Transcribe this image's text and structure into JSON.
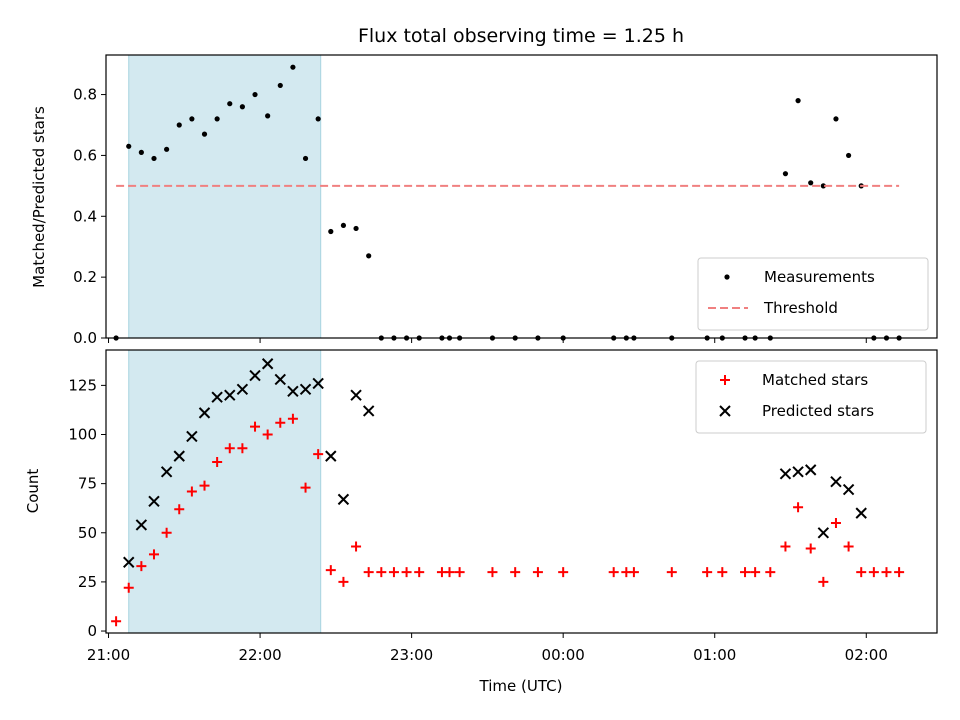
{
  "chart_data": [
    {
      "type": "scatter",
      "title": "Flux total observing time = 1.25 h",
      "xlabel": "",
      "ylabel": "Matched/Predicted stars",
      "ylim": [
        0,
        0.93
      ],
      "yticks": [
        0.0,
        0.2,
        0.4,
        0.6,
        0.8
      ],
      "ytick_labels": [
        "0.0",
        "0.2",
        "0.4",
        "0.6",
        "0.8"
      ],
      "xlim": [
        "20:59",
        "02:28"
      ],
      "shaded_interval": [
        "21:08",
        "22:24"
      ],
      "shade_color": "#d3e9f0",
      "legend_position": "lower-right",
      "series": [
        {
          "name": "Measurements",
          "marker": "dot",
          "color": "#000000",
          "points": [
            [
              "21:03",
              0.0
            ],
            [
              "21:08",
              0.63
            ],
            [
              "21:13",
              0.61
            ],
            [
              "21:18",
              0.59
            ],
            [
              "21:23",
              0.62
            ],
            [
              "21:28",
              0.7
            ],
            [
              "21:33",
              0.72
            ],
            [
              "21:38",
              0.67
            ],
            [
              "21:43",
              0.72
            ],
            [
              "21:48",
              0.77
            ],
            [
              "21:53",
              0.76
            ],
            [
              "21:58",
              0.8
            ],
            [
              "22:03",
              0.73
            ],
            [
              "22:08",
              0.83
            ],
            [
              "22:13",
              0.89
            ],
            [
              "22:18",
              0.59
            ],
            [
              "22:23",
              0.72
            ],
            [
              "22:28",
              0.35
            ],
            [
              "22:33",
              0.37
            ],
            [
              "22:38",
              0.36
            ],
            [
              "22:43",
              0.27
            ],
            [
              "22:48",
              0.0
            ],
            [
              "22:53",
              0.0
            ],
            [
              "22:58",
              0.0
            ],
            [
              "23:03",
              0.0
            ],
            [
              "23:12",
              0.0
            ],
            [
              "23:15",
              0.0
            ],
            [
              "23:19",
              0.0
            ],
            [
              "23:32",
              0.0
            ],
            [
              "23:41",
              0.0
            ],
            [
              "23:50",
              0.0
            ],
            [
              "00:00",
              0.0
            ],
            [
              "00:20",
              0.0
            ],
            [
              "00:25",
              0.0
            ],
            [
              "00:28",
              0.0
            ],
            [
              "00:43",
              0.0
            ],
            [
              "00:57",
              0.0
            ],
            [
              "01:03",
              0.0
            ],
            [
              "01:12",
              0.0
            ],
            [
              "01:16",
              0.0
            ],
            [
              "01:22",
              0.0
            ],
            [
              "01:28",
              0.54
            ],
            [
              "01:33",
              0.78
            ],
            [
              "01:38",
              0.51
            ],
            [
              "01:43",
              0.5
            ],
            [
              "01:48",
              0.72
            ],
            [
              "01:53",
              0.6
            ],
            [
              "01:58",
              0.5
            ],
            [
              "02:03",
              0.0
            ],
            [
              "02:08",
              0.0
            ],
            [
              "02:13",
              0.0
            ]
          ]
        },
        {
          "name": "Threshold",
          "marker": "dashed-line",
          "color": "#f08080",
          "points": [
            [
              "21:03",
              0.5
            ],
            [
              "02:13",
              0.5
            ]
          ]
        }
      ]
    },
    {
      "type": "scatter",
      "title": "",
      "xlabel": "Time (UTC)",
      "ylabel": "Count",
      "ylim": [
        -1,
        143
      ],
      "yticks": [
        0,
        25,
        50,
        75,
        100,
        125
      ],
      "ytick_labels": [
        "0",
        "25",
        "50",
        "75",
        "100",
        "125"
      ],
      "xlim": [
        "20:59",
        "02:28"
      ],
      "xticks": [
        "21:00",
        "22:00",
        "23:00",
        "00:00",
        "01:00",
        "02:00"
      ],
      "xtick_labels": [
        "21:00",
        "22:00",
        "23:00",
        "00:00",
        "01:00",
        "02:00"
      ],
      "shaded_interval": [
        "21:08",
        "22:24"
      ],
      "shade_color": "#d3e9f0",
      "legend_position": "top-right",
      "series": [
        {
          "name": "Matched stars",
          "marker": "plus",
          "color": "#ff0000",
          "points": [
            [
              "21:03",
              5
            ],
            [
              "21:08",
              22
            ],
            [
              "21:13",
              33
            ],
            [
              "21:18",
              39
            ],
            [
              "21:23",
              50
            ],
            [
              "21:28",
              62
            ],
            [
              "21:33",
              71
            ],
            [
              "21:38",
              74
            ],
            [
              "21:43",
              86
            ],
            [
              "21:48",
              93
            ],
            [
              "21:53",
              93
            ],
            [
              "21:58",
              104
            ],
            [
              "22:03",
              100
            ],
            [
              "22:08",
              106
            ],
            [
              "22:13",
              108
            ],
            [
              "22:18",
              73
            ],
            [
              "22:23",
              90
            ],
            [
              "22:28",
              31
            ],
            [
              "22:33",
              25
            ],
            [
              "22:38",
              43
            ],
            [
              "22:43",
              30
            ],
            [
              "22:48",
              30
            ],
            [
              "22:53",
              30
            ],
            [
              "22:58",
              30
            ],
            [
              "23:03",
              30
            ],
            [
              "23:12",
              30
            ],
            [
              "23:15",
              30
            ],
            [
              "23:19",
              30
            ],
            [
              "23:32",
              30
            ],
            [
              "23:41",
              30
            ],
            [
              "23:50",
              30
            ],
            [
              "00:00",
              30
            ],
            [
              "00:20",
              30
            ],
            [
              "00:25",
              30
            ],
            [
              "00:28",
              30
            ],
            [
              "00:43",
              30
            ],
            [
              "00:57",
              30
            ],
            [
              "01:03",
              30
            ],
            [
              "01:12",
              30
            ],
            [
              "01:16",
              30
            ],
            [
              "01:22",
              30
            ],
            [
              "01:28",
              43
            ],
            [
              "01:33",
              63
            ],
            [
              "01:38",
              42
            ],
            [
              "01:43",
              25
            ],
            [
              "01:48",
              55
            ],
            [
              "01:53",
              43
            ],
            [
              "01:58",
              30
            ],
            [
              "02:03",
              30
            ],
            [
              "02:08",
              30
            ],
            [
              "02:13",
              30
            ]
          ]
        },
        {
          "name": "Predicted stars",
          "marker": "x",
          "color": "#000000",
          "points": [
            [
              "21:08",
              35
            ],
            [
              "21:13",
              54
            ],
            [
              "21:18",
              66
            ],
            [
              "21:23",
              81
            ],
            [
              "21:28",
              89
            ],
            [
              "21:33",
              99
            ],
            [
              "21:38",
              111
            ],
            [
              "21:43",
              119
            ],
            [
              "21:48",
              120
            ],
            [
              "21:53",
              123
            ],
            [
              "21:58",
              130
            ],
            [
              "22:03",
              136
            ],
            [
              "22:08",
              128
            ],
            [
              "22:13",
              122
            ],
            [
              "22:18",
              123
            ],
            [
              "22:23",
              126
            ],
            [
              "22:28",
              89
            ],
            [
              "22:33",
              67
            ],
            [
              "22:38",
              120
            ],
            [
              "22:43",
              112
            ],
            [
              "01:28",
              80
            ],
            [
              "01:33",
              81
            ],
            [
              "01:38",
              82
            ],
            [
              "01:43",
              50
            ],
            [
              "01:48",
              76
            ],
            [
              "01:53",
              72
            ],
            [
              "01:58",
              60
            ]
          ]
        }
      ]
    }
  ]
}
